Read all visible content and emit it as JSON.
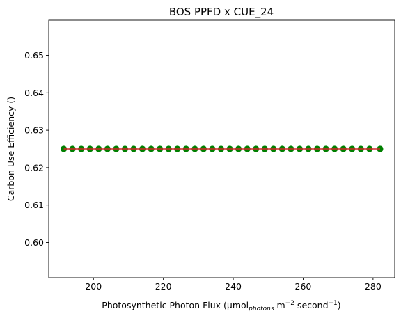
{
  "chart_data": {
    "type": "scatter",
    "title": "BOS PPFD x CUE_24",
    "xlabel": {
      "prefix": "Photosynthetic Photon Flux (µmol",
      "subscript": "photons",
      "mid": " m",
      "sup1": "−2",
      "mid2": " second",
      "sup2": "−1",
      "suffix": ")"
    },
    "ylabel": "Carbon Use Efficiency ()",
    "xlim": [
      187.2,
      286.2
    ],
    "ylim": [
      0.5906,
      0.6594
    ],
    "xticks": [
      200,
      220,
      240,
      260,
      280
    ],
    "yticks": [
      0.6,
      0.61,
      0.62,
      0.63,
      0.64,
      0.65
    ],
    "xtick_labels": [
      "200",
      "220",
      "240",
      "260",
      "280"
    ],
    "ytick_labels": [
      "0.60",
      "0.61",
      "0.62",
      "0.63",
      "0.64",
      "0.65"
    ],
    "grid": false,
    "series": [
      {
        "kind": "scatter",
        "color": "#007f00",
        "x_start": 191.5,
        "x_end": 282.0,
        "y": 0.625,
        "values": [
          [
            191.5,
            0.625
          ],
          [
            194.0,
            0.625
          ],
          [
            196.5,
            0.625
          ],
          [
            199.0,
            0.625
          ],
          [
            201.5,
            0.625
          ],
          [
            204.0,
            0.625
          ],
          [
            206.5,
            0.625
          ],
          [
            209.0,
            0.625
          ],
          [
            211.5,
            0.625
          ],
          [
            214.0,
            0.625
          ],
          [
            216.5,
            0.625
          ],
          [
            219.0,
            0.625
          ],
          [
            221.5,
            0.625
          ],
          [
            224.0,
            0.625
          ],
          [
            226.5,
            0.625
          ],
          [
            229.0,
            0.625
          ],
          [
            231.5,
            0.625
          ],
          [
            234.0,
            0.625
          ],
          [
            236.5,
            0.625
          ],
          [
            239.0,
            0.625
          ],
          [
            241.5,
            0.625
          ],
          [
            244.0,
            0.625
          ],
          [
            246.5,
            0.625
          ],
          [
            249.0,
            0.625
          ],
          [
            251.5,
            0.625
          ],
          [
            254.0,
            0.625
          ],
          [
            256.5,
            0.625
          ],
          [
            259.0,
            0.625
          ],
          [
            261.5,
            0.625
          ],
          [
            264.0,
            0.625
          ],
          [
            266.5,
            0.625
          ],
          [
            269.0,
            0.625
          ],
          [
            271.5,
            0.625
          ],
          [
            274.0,
            0.625
          ],
          [
            276.5,
            0.625
          ],
          [
            279.0,
            0.625
          ],
          [
            282.0,
            0.625
          ]
        ]
      },
      {
        "kind": "line",
        "color": "#d62728",
        "points": [
          [
            191.5,
            0.625
          ],
          [
            282.0,
            0.625
          ]
        ]
      }
    ]
  }
}
